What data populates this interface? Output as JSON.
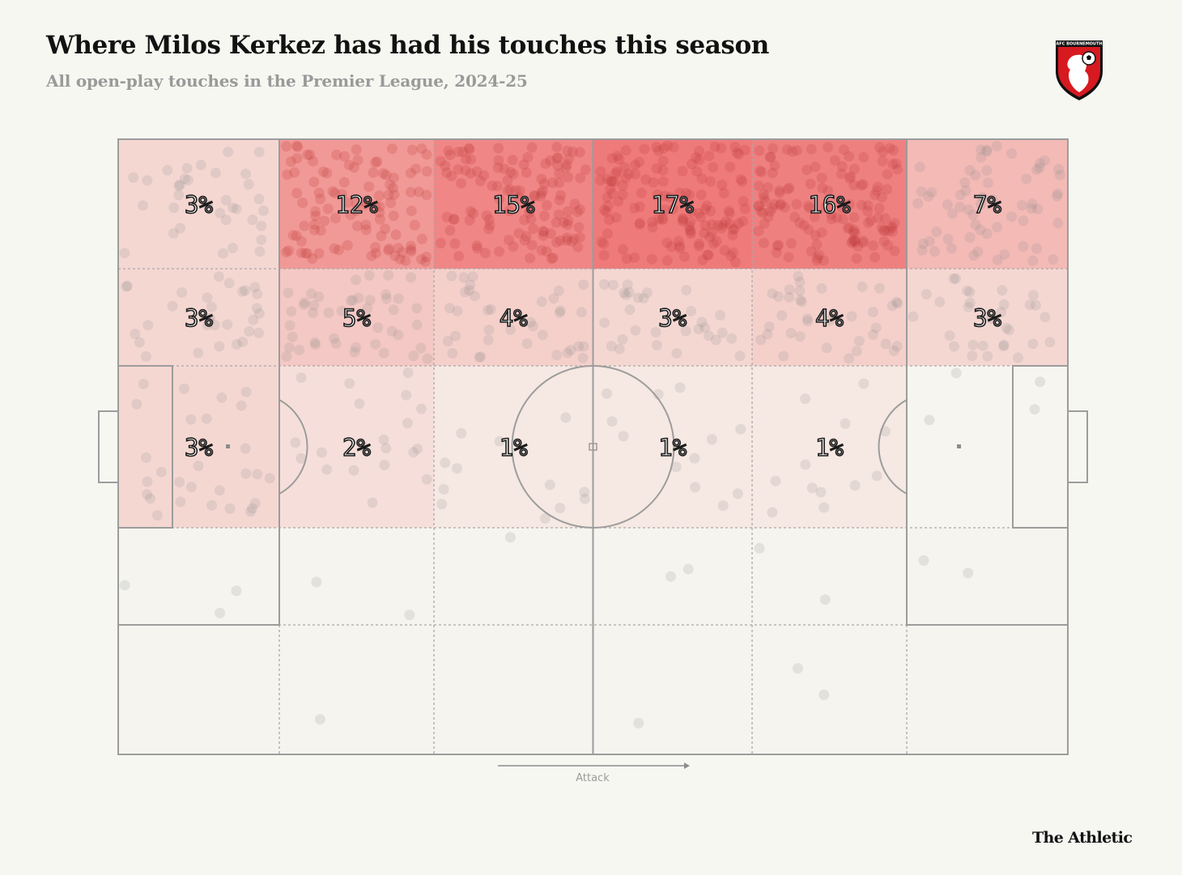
{
  "header": {
    "title": "Where Milos Kerkez has had his touches this season",
    "subtitle": "All open-play touches in the Premier League, 2024-25"
  },
  "crest": {
    "name": "bournemouth-crest-icon",
    "text": "AFC BOURNEMOUTH"
  },
  "direction": {
    "label": "Attack"
  },
  "brand": {
    "label": "The Athletic"
  },
  "colors": {
    "background": "#f7f7f2",
    "line": "#9c9c9c",
    "heat_low": "#f7f3ec",
    "heat_high": "#ef7a7a",
    "dot": "#8a8a8a",
    "dot_hot": "#c0393b"
  },
  "chart_data": {
    "type": "heatmap",
    "title": "Where Milos Kerkez has had his touches this season",
    "subtitle": "All open-play touches in the Premier League, 2024-25",
    "x_direction": "Attack",
    "columns": 6,
    "rows": 5,
    "values": [
      [
        3,
        12,
        15,
        17,
        16,
        7
      ],
      [
        3,
        5,
        4,
        3,
        4,
        3
      ],
      [
        3,
        2,
        1,
        1,
        1,
        null
      ],
      [
        null,
        null,
        null,
        null,
        null,
        null
      ],
      [
        null,
        null,
        null,
        null,
        null,
        null
      ]
    ],
    "labels": [
      [
        "3%",
        "12%",
        "15%",
        "17%",
        "16%",
        "7%"
      ],
      [
        "3%",
        "5%",
        "4%",
        "3%",
        "4%",
        "3%"
      ],
      [
        "3%",
        "2%",
        "1%",
        "1%",
        "1%",
        ""
      ],
      [
        "",
        "",
        "",
        "",
        "",
        ""
      ],
      [
        "",
        "",
        "",
        "",
        "",
        ""
      ]
    ],
    "dot_counts": [
      [
        34,
        108,
        125,
        140,
        132,
        62
      ],
      [
        30,
        44,
        36,
        30,
        36,
        30
      ],
      [
        28,
        20,
        12,
        12,
        12,
        4
      ],
      [
        3,
        2,
        1,
        2,
        2,
        2
      ],
      [
        0,
        1,
        0,
        1,
        2,
        0
      ]
    ]
  }
}
